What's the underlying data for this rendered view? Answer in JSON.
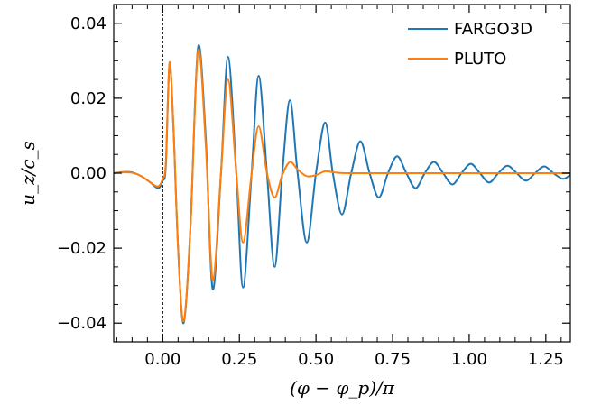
{
  "chart_data": {
    "type": "line",
    "xlabel": "(φ − φ_p)/π",
    "ylabel": "u_z/c_s",
    "xlim": [
      -0.16,
      1.33
    ],
    "ylim": [
      -0.045,
      0.045
    ],
    "xticks": [
      0.0,
      0.25,
      0.5,
      0.75,
      1.0,
      1.25
    ],
    "xtick_labels": [
      "0.00",
      "0.25",
      "0.50",
      "0.75",
      "1.00",
      "1.25"
    ],
    "yticks": [
      -0.04,
      -0.02,
      0.0,
      0.02,
      0.04
    ],
    "ytick_labels": [
      "−0.04",
      "−0.02",
      "0.00",
      "0.02",
      "0.04"
    ],
    "legend_position": "top-right",
    "vline": 0.0,
    "series": [
      {
        "name": "FARGO3D",
        "color": "#1f77b4",
        "points": [
          [
            -0.16,
            0.0
          ],
          [
            -0.13,
            0.0003
          ],
          [
            -0.1,
            0.0002
          ],
          [
            -0.07,
            -0.0008
          ],
          [
            -0.04,
            -0.0025
          ],
          [
            -0.015,
            -0.004
          ],
          [
            0.0,
            -0.002
          ],
          [
            0.01,
            0.002
          ],
          [
            0.022,
            0.029
          ],
          [
            0.035,
            0.012
          ],
          [
            0.05,
            -0.02
          ],
          [
            0.068,
            -0.04
          ],
          [
            0.09,
            -0.015
          ],
          [
            0.115,
            0.0335
          ],
          [
            0.14,
            0.01
          ],
          [
            0.163,
            -0.031
          ],
          [
            0.19,
            0.0
          ],
          [
            0.213,
            0.031
          ],
          [
            0.24,
            0.0
          ],
          [
            0.262,
            -0.0305
          ],
          [
            0.29,
            0.0
          ],
          [
            0.313,
            0.026
          ],
          [
            0.34,
            0.0
          ],
          [
            0.365,
            -0.025
          ],
          [
            0.39,
            0.0
          ],
          [
            0.415,
            0.0195
          ],
          [
            0.44,
            0.0
          ],
          [
            0.47,
            -0.0185
          ],
          [
            0.5,
            0.0
          ],
          [
            0.53,
            0.0135
          ],
          [
            0.555,
            0.0
          ],
          [
            0.585,
            -0.011
          ],
          [
            0.615,
            0.0
          ],
          [
            0.645,
            0.0085
          ],
          [
            0.675,
            0.0
          ],
          [
            0.705,
            -0.0065
          ],
          [
            0.735,
            0.0
          ],
          [
            0.765,
            0.0045
          ],
          [
            0.795,
            0.0
          ],
          [
            0.825,
            -0.004
          ],
          [
            0.855,
            0.0
          ],
          [
            0.885,
            0.003
          ],
          [
            0.915,
            0.0
          ],
          [
            0.945,
            -0.003
          ],
          [
            0.975,
            0.0
          ],
          [
            1.005,
            0.0025
          ],
          [
            1.035,
            0.0
          ],
          [
            1.065,
            -0.0025
          ],
          [
            1.095,
            0.0
          ],
          [
            1.125,
            0.002
          ],
          [
            1.155,
            0.0
          ],
          [
            1.185,
            -0.002
          ],
          [
            1.215,
            0.0
          ],
          [
            1.245,
            0.0018
          ],
          [
            1.275,
            0.0
          ],
          [
            1.305,
            -0.0015
          ],
          [
            1.33,
            -0.0005
          ]
        ]
      },
      {
        "name": "PLUTO",
        "color": "#ff7f0e",
        "points": [
          [
            -0.16,
            0.0
          ],
          [
            -0.13,
            0.0002
          ],
          [
            -0.1,
            0.0001
          ],
          [
            -0.07,
            -0.0008
          ],
          [
            -0.04,
            -0.0025
          ],
          [
            -0.015,
            -0.0035
          ],
          [
            0.0,
            -0.0015
          ],
          [
            0.01,
            0.003
          ],
          [
            0.022,
            0.0295
          ],
          [
            0.035,
            0.012
          ],
          [
            0.05,
            -0.02
          ],
          [
            0.068,
            -0.0395
          ],
          [
            0.09,
            -0.015
          ],
          [
            0.115,
            0.0325
          ],
          [
            0.14,
            0.008
          ],
          [
            0.163,
            -0.0285
          ],
          [
            0.19,
            0.0
          ],
          [
            0.213,
            0.025
          ],
          [
            0.24,
            0.0
          ],
          [
            0.262,
            -0.0185
          ],
          [
            0.29,
            0.0
          ],
          [
            0.313,
            0.0125
          ],
          [
            0.34,
            0.0
          ],
          [
            0.365,
            -0.0065
          ],
          [
            0.39,
            -0.0005
          ],
          [
            0.415,
            0.003
          ],
          [
            0.44,
            0.001
          ],
          [
            0.47,
            -0.0008
          ],
          [
            0.5,
            -0.0005
          ],
          [
            0.53,
            0.0005
          ],
          [
            0.56,
            0.0002
          ],
          [
            0.6,
            0.0
          ],
          [
            0.7,
            0.0
          ],
          [
            0.8,
            0.0
          ],
          [
            0.9,
            0.0
          ],
          [
            1.0,
            0.0
          ],
          [
            1.1,
            0.0
          ],
          [
            1.2,
            0.0
          ],
          [
            1.33,
            0.0
          ]
        ]
      }
    ]
  }
}
